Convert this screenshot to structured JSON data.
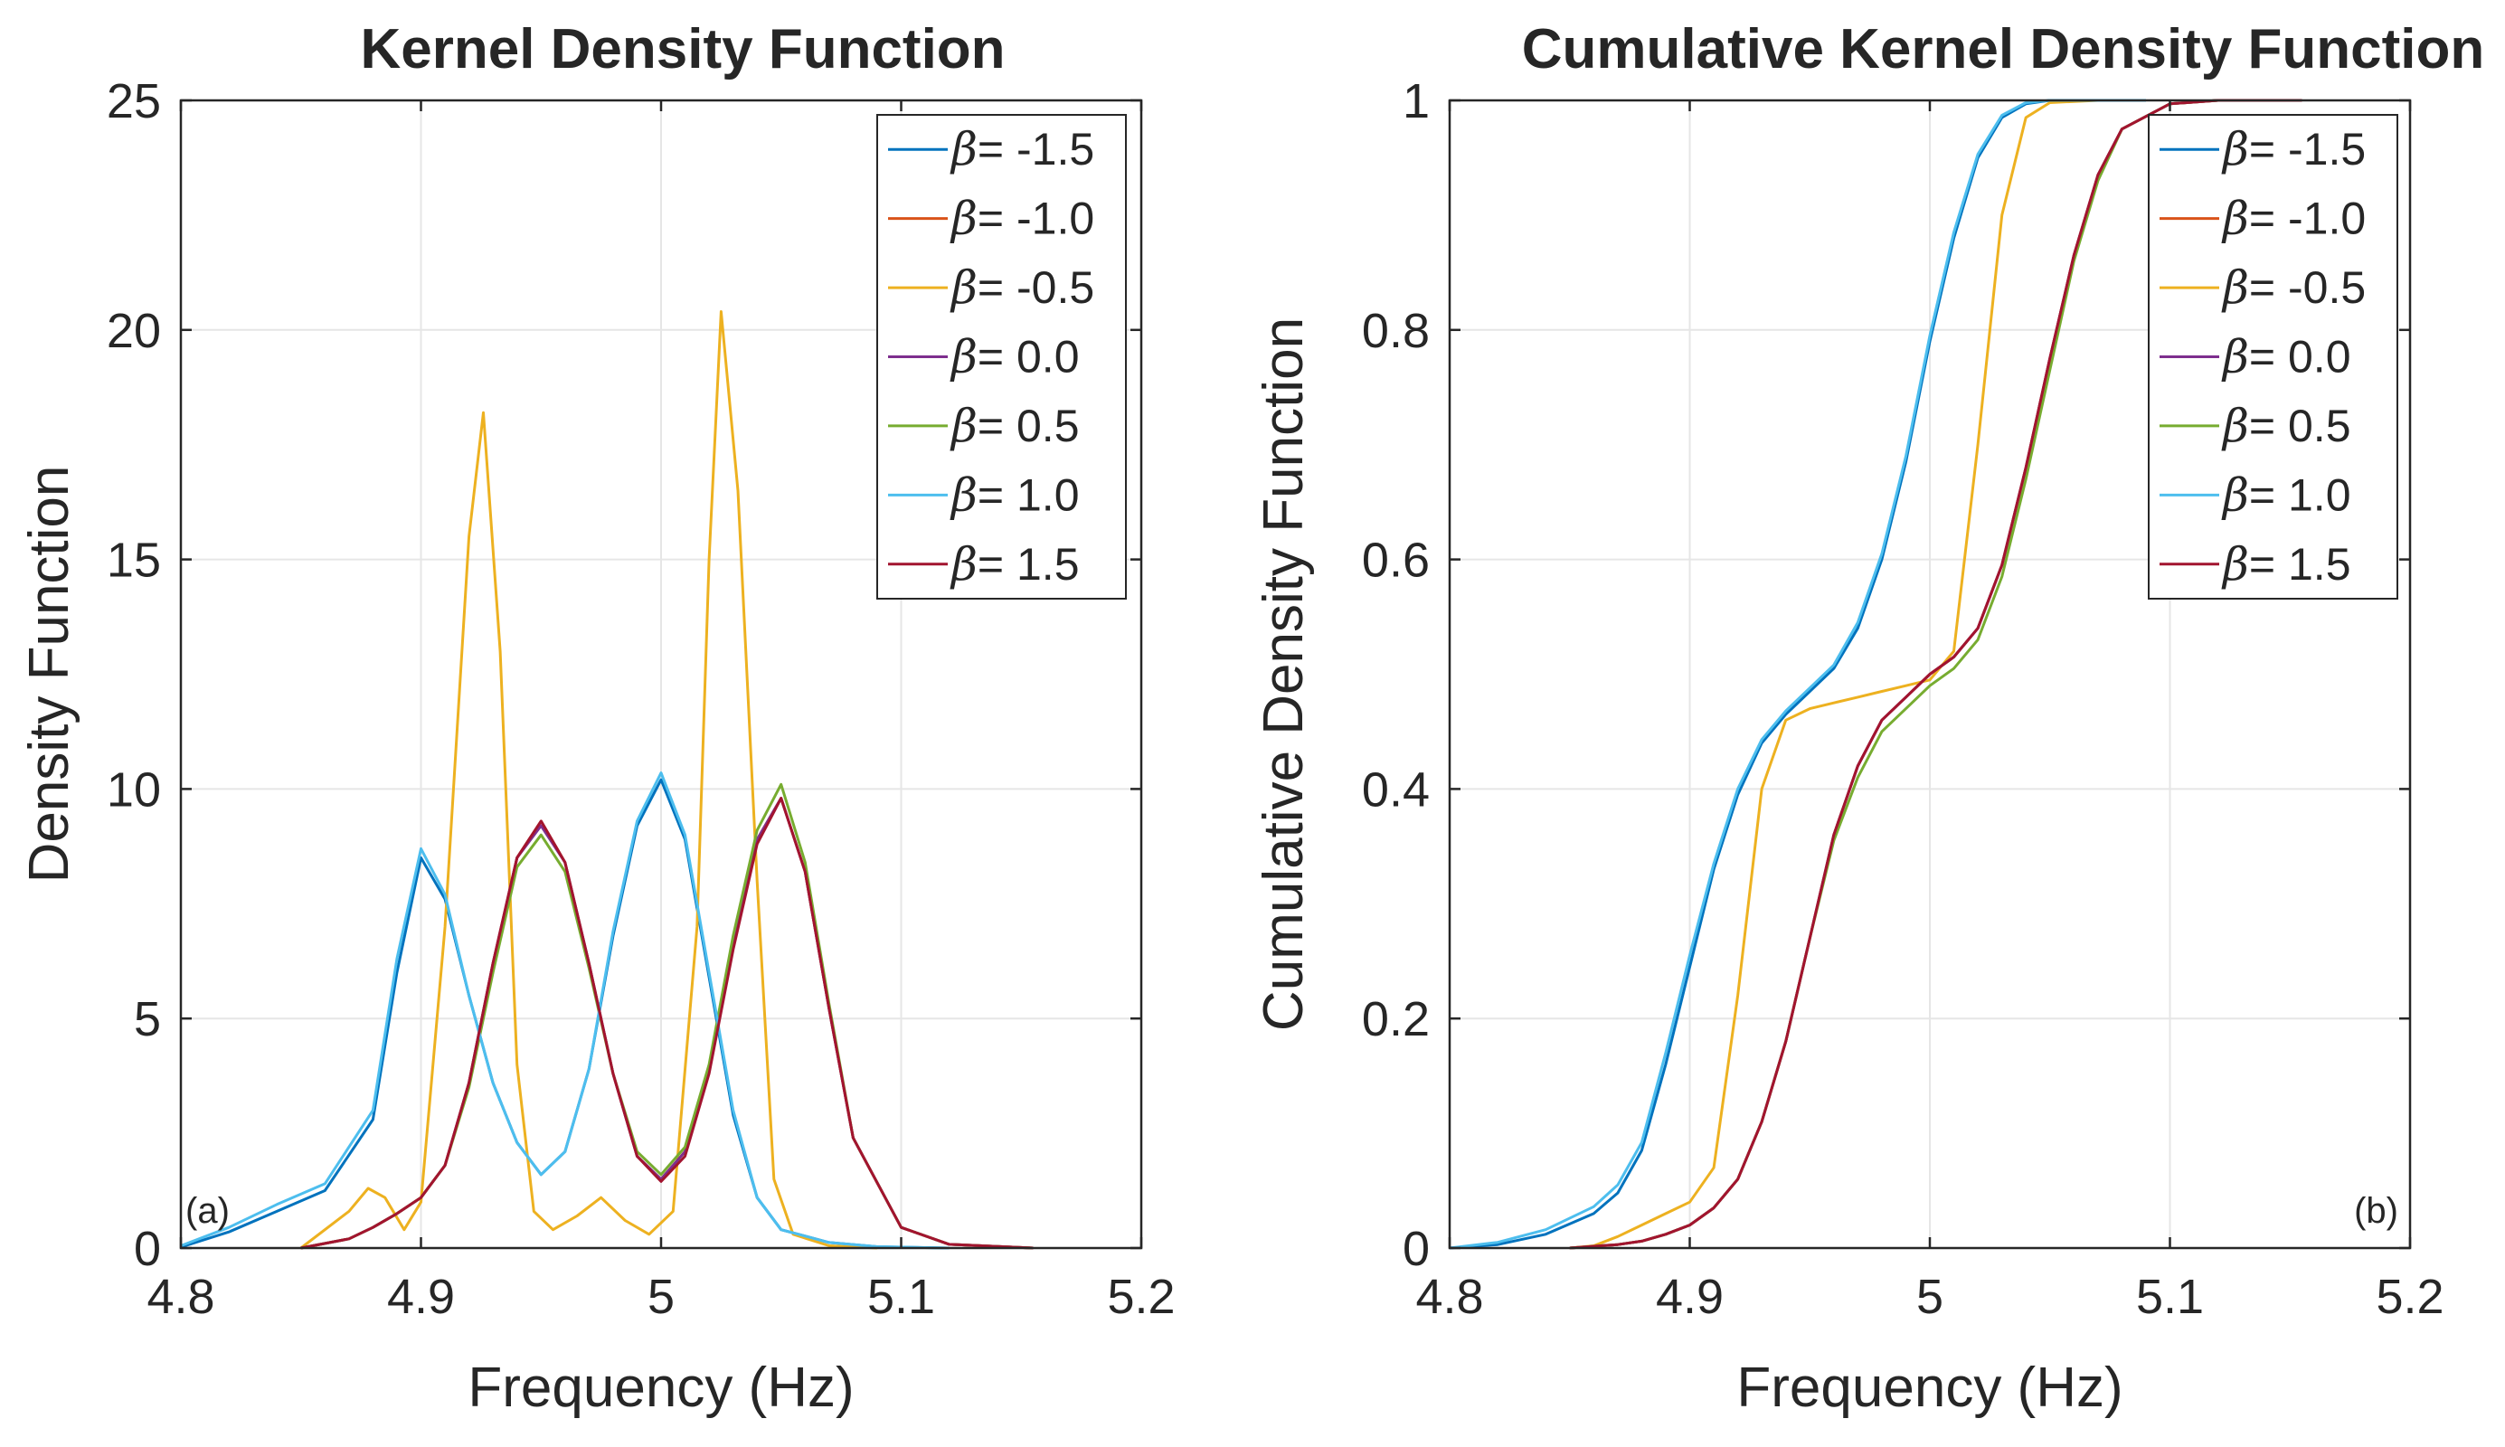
{
  "chart_data": [
    {
      "type": "line",
      "panel_label": "(a)",
      "title": "Kernel Density Function",
      "xlabel": "Frequency (Hz)",
      "ylabel": "Density Function",
      "xlim": [
        4.8,
        5.2
      ],
      "ylim": [
        0,
        25
      ],
      "xticks": [
        4.8,
        4.9,
        5.0,
        5.1,
        5.2
      ],
      "xtick_labels": [
        "4.8",
        "4.9",
        "5",
        "5.1",
        "5.2"
      ],
      "yticks": [
        0,
        5,
        10,
        15,
        20,
        25
      ],
      "ytick_labels": [
        "0",
        "5",
        "10",
        "15",
        "20",
        "25"
      ],
      "grid": true,
      "legend_position": "top-right",
      "legend_prefix": "β",
      "series": [
        {
          "name": "β= -1.5",
          "label": "= -1.5",
          "color": "#0072BD",
          "x": [
            4.8,
            4.82,
            4.84,
            4.86,
            4.88,
            4.89,
            4.9,
            4.91,
            4.92,
            4.93,
            4.94,
            4.95,
            4.96,
            4.97,
            4.98,
            4.99,
            5.0,
            5.01,
            5.02,
            5.03,
            5.04,
            5.05,
            5.07,
            5.09,
            5.12
          ],
          "y": [
            0.02,
            0.35,
            0.8,
            1.25,
            2.8,
            6.0,
            8.5,
            7.6,
            5.5,
            3.6,
            2.3,
            1.6,
            2.1,
            3.9,
            6.8,
            9.2,
            10.2,
            8.9,
            5.9,
            2.9,
            1.1,
            0.4,
            0.12,
            0.03,
            0
          ]
        },
        {
          "name": "β= -1.0",
          "label": "= -1.0",
          "color": "#D95319",
          "x": [
            4.85,
            4.87,
            4.88,
            4.89,
            4.9,
            4.91,
            4.92,
            4.93,
            4.94,
            4.95,
            4.96,
            4.97,
            4.98,
            4.99,
            5.0,
            5.01,
            5.02,
            5.03,
            5.04,
            5.05,
            5.06,
            5.07,
            5.08,
            5.1,
            5.12,
            5.155
          ],
          "y": [
            0,
            0.2,
            0.45,
            0.75,
            1.1,
            1.8,
            3.6,
            6.2,
            8.5,
            9.3,
            8.4,
            6.2,
            3.8,
            2.0,
            1.5,
            2.1,
            3.9,
            6.6,
            8.9,
            9.8,
            8.2,
            5.2,
            2.4,
            0.45,
            0.08,
            0
          ]
        },
        {
          "name": "β= -0.5",
          "label": "= -0.5",
          "color": "#EDB120",
          "x": [
            4.85,
            4.87,
            4.878,
            4.885,
            4.893,
            4.9,
            4.91,
            4.92,
            4.926,
            4.933,
            4.94,
            4.947,
            4.955,
            4.965,
            4.975,
            4.985,
            4.995,
            5.005,
            5.015,
            5.02,
            5.025,
            5.032,
            5.04,
            5.047,
            5.055,
            5.07,
            5.09
          ],
          "y": [
            0,
            0.8,
            1.3,
            1.1,
            0.4,
            1.0,
            7.0,
            15.5,
            18.2,
            13.0,
            4.0,
            0.8,
            0.4,
            0.7,
            1.1,
            0.6,
            0.3,
            0.8,
            7.0,
            15.0,
            20.4,
            16.5,
            8.0,
            1.5,
            0.3,
            0.05,
            0
          ]
        },
        {
          "name": "β= 0.0",
          "label": "= 0.0",
          "color": "#7E2F8E",
          "x": [
            4.85,
            4.87,
            4.88,
            4.89,
            4.9,
            4.91,
            4.92,
            4.93,
            4.94,
            4.95,
            4.96,
            4.97,
            4.98,
            4.99,
            5.0,
            5.01,
            5.02,
            5.03,
            5.04,
            5.05,
            5.06,
            5.07,
            5.08,
            5.1,
            5.12,
            5.155
          ],
          "y": [
            0,
            0.2,
            0.45,
            0.75,
            1.1,
            1.8,
            3.6,
            6.2,
            8.5,
            9.2,
            8.4,
            6.2,
            3.8,
            2.0,
            1.5,
            2.1,
            3.9,
            6.6,
            8.9,
            9.8,
            8.2,
            5.2,
            2.4,
            0.45,
            0.08,
            0
          ]
        },
        {
          "name": "β= 0.5",
          "label": "= 0.5",
          "color": "#77AC30",
          "x": [
            4.85,
            4.87,
            4.88,
            4.89,
            4.9,
            4.91,
            4.92,
            4.93,
            4.94,
            4.95,
            4.96,
            4.97,
            4.98,
            4.99,
            5.0,
            5.01,
            5.02,
            5.03,
            5.04,
            5.05,
            5.06,
            5.07,
            5.08,
            5.1,
            5.12,
            5.155
          ],
          "y": [
            0,
            0.2,
            0.45,
            0.75,
            1.1,
            1.8,
            3.5,
            6.0,
            8.3,
            9.0,
            8.2,
            6.1,
            3.8,
            2.1,
            1.6,
            2.2,
            4.0,
            6.8,
            9.1,
            10.1,
            8.4,
            5.3,
            2.4,
            0.45,
            0.08,
            0
          ]
        },
        {
          "name": "β= 1.0",
          "label": "= 1.0",
          "color": "#4DBEEE",
          "x": [
            4.8,
            4.82,
            4.84,
            4.86,
            4.88,
            4.89,
            4.9,
            4.91,
            4.92,
            4.93,
            4.94,
            4.95,
            4.96,
            4.97,
            4.98,
            4.99,
            5.0,
            5.01,
            5.02,
            5.03,
            5.04,
            5.05,
            5.07,
            5.09,
            5.12
          ],
          "y": [
            0.05,
            0.45,
            0.95,
            1.4,
            3.0,
            6.3,
            8.7,
            7.7,
            5.5,
            3.6,
            2.3,
            1.6,
            2.1,
            3.9,
            6.9,
            9.3,
            10.35,
            9.0,
            6.0,
            3.0,
            1.1,
            0.4,
            0.12,
            0.03,
            0
          ]
        },
        {
          "name": "β= 1.5",
          "label": "= 1.5",
          "color": "#A2142F",
          "x": [
            4.85,
            4.87,
            4.88,
            4.89,
            4.9,
            4.91,
            4.92,
            4.93,
            4.94,
            4.95,
            4.96,
            4.97,
            4.98,
            4.99,
            5.0,
            5.01,
            5.02,
            5.03,
            5.04,
            5.05,
            5.06,
            5.07,
            5.08,
            5.1,
            5.12,
            5.155
          ],
          "y": [
            0,
            0.2,
            0.45,
            0.75,
            1.1,
            1.8,
            3.6,
            6.2,
            8.5,
            9.3,
            8.4,
            6.2,
            3.8,
            2.0,
            1.45,
            2.0,
            3.8,
            6.5,
            8.8,
            9.8,
            8.2,
            5.2,
            2.4,
            0.45,
            0.08,
            0
          ]
        }
      ]
    },
    {
      "type": "line",
      "panel_label": "(b)",
      "title": "Cumulative Kernel Density Function",
      "xlabel": "Frequency (Hz)",
      "ylabel": "Cumulative Density Function",
      "xlim": [
        4.8,
        5.2
      ],
      "ylim": [
        0,
        1
      ],
      "xticks": [
        4.8,
        4.9,
        5.0,
        5.1,
        5.2
      ],
      "xtick_labels": [
        "4.8",
        "4.9",
        "5",
        "5.1",
        "5.2"
      ],
      "yticks": [
        0,
        0.2,
        0.4,
        0.6,
        0.8,
        1.0
      ],
      "ytick_labels": [
        "0",
        "0.2",
        "0.4",
        "0.6",
        "0.8",
        "1"
      ],
      "grid": true,
      "legend_position": "top-right",
      "legend_prefix": "β",
      "series": [
        {
          "name": "β= -1.5",
          "label": "= -1.5",
          "color": "#0072BD",
          "x": [
            4.8,
            4.82,
            4.84,
            4.86,
            4.87,
            4.88,
            4.89,
            4.9,
            4.91,
            4.92,
            4.93,
            4.94,
            4.95,
            4.96,
            4.97,
            4.98,
            4.99,
            5.0,
            5.01,
            5.02,
            5.03,
            5.04,
            5.05,
            5.07,
            5.09
          ],
          "y": [
            0,
            0.003,
            0.012,
            0.03,
            0.048,
            0.085,
            0.16,
            0.245,
            0.33,
            0.395,
            0.44,
            0.465,
            0.485,
            0.505,
            0.54,
            0.6,
            0.685,
            0.79,
            0.88,
            0.95,
            0.985,
            0.997,
            1.0,
            1.0,
            1.0
          ]
        },
        {
          "name": "β= -1.0",
          "label": "= -1.0",
          "color": "#D95319",
          "x": [
            4.85,
            4.87,
            4.88,
            4.89,
            4.9,
            4.91,
            4.92,
            4.93,
            4.94,
            4.95,
            4.96,
            4.97,
            4.98,
            4.99,
            5.0,
            5.01,
            5.02,
            5.03,
            5.04,
            5.05,
            5.06,
            5.07,
            5.08,
            5.1,
            5.12,
            5.155
          ],
          "y": [
            0,
            0.003,
            0.006,
            0.012,
            0.02,
            0.035,
            0.06,
            0.11,
            0.18,
            0.27,
            0.36,
            0.42,
            0.46,
            0.48,
            0.5,
            0.515,
            0.54,
            0.595,
            0.68,
            0.775,
            0.865,
            0.935,
            0.975,
            0.997,
            1.0,
            1.0
          ]
        },
        {
          "name": "β= -0.5",
          "label": "= -0.5",
          "color": "#EDB120",
          "x": [
            4.85,
            4.86,
            4.87,
            4.88,
            4.89,
            4.9,
            4.91,
            4.92,
            4.93,
            4.94,
            4.95,
            4.96,
            4.97,
            4.98,
            4.99,
            5.0,
            5.01,
            5.02,
            5.03,
            5.04,
            5.05,
            5.07
          ],
          "y": [
            0,
            0.002,
            0.01,
            0.02,
            0.03,
            0.04,
            0.07,
            0.22,
            0.4,
            0.46,
            0.47,
            0.475,
            0.48,
            0.485,
            0.49,
            0.495,
            0.52,
            0.7,
            0.9,
            0.985,
            0.998,
            1.0
          ]
        },
        {
          "name": "β= 0.0",
          "label": "= 0.0",
          "color": "#7E2F8E",
          "x": [
            4.85,
            4.87,
            4.88,
            4.89,
            4.9,
            4.91,
            4.92,
            4.93,
            4.94,
            4.95,
            4.96,
            4.97,
            4.98,
            4.99,
            5.0,
            5.01,
            5.02,
            5.03,
            5.04,
            5.05,
            5.06,
            5.07,
            5.08,
            5.1,
            5.12,
            5.155
          ],
          "y": [
            0,
            0.003,
            0.006,
            0.012,
            0.02,
            0.035,
            0.06,
            0.11,
            0.18,
            0.27,
            0.36,
            0.42,
            0.46,
            0.48,
            0.5,
            0.515,
            0.54,
            0.595,
            0.68,
            0.775,
            0.865,
            0.935,
            0.975,
            0.997,
            1.0,
            1.0
          ]
        },
        {
          "name": "β= 0.5",
          "label": "= 0.5",
          "color": "#77AC30",
          "x": [
            4.85,
            4.87,
            4.88,
            4.89,
            4.9,
            4.91,
            4.92,
            4.93,
            4.94,
            4.95,
            4.96,
            4.97,
            4.98,
            4.99,
            5.0,
            5.01,
            5.02,
            5.03,
            5.04,
            5.05,
            5.06,
            5.07,
            5.08,
            5.1,
            5.12,
            5.155
          ],
          "y": [
            0,
            0.003,
            0.006,
            0.012,
            0.02,
            0.035,
            0.06,
            0.11,
            0.18,
            0.27,
            0.355,
            0.41,
            0.45,
            0.47,
            0.49,
            0.505,
            0.53,
            0.585,
            0.67,
            0.765,
            0.86,
            0.93,
            0.975,
            0.997,
            1.0,
            1.0
          ]
        },
        {
          "name": "β= 1.0",
          "label": "= 1.0",
          "color": "#4DBEEE",
          "x": [
            4.8,
            4.82,
            4.84,
            4.86,
            4.87,
            4.88,
            4.89,
            4.9,
            4.91,
            4.92,
            4.93,
            4.94,
            4.95,
            4.96,
            4.97,
            4.98,
            4.99,
            5.0,
            5.01,
            5.02,
            5.03,
            5.04,
            5.05,
            5.07,
            5.09
          ],
          "y": [
            0,
            0.005,
            0.016,
            0.036,
            0.055,
            0.092,
            0.17,
            0.255,
            0.335,
            0.4,
            0.443,
            0.468,
            0.488,
            0.508,
            0.545,
            0.605,
            0.69,
            0.795,
            0.885,
            0.953,
            0.987,
            0.998,
            1.0,
            1.0,
            1.0
          ]
        },
        {
          "name": "β= 1.5",
          "label": "= 1.5",
          "color": "#A2142F",
          "x": [
            4.85,
            4.87,
            4.88,
            4.89,
            4.9,
            4.91,
            4.92,
            4.93,
            4.94,
            4.95,
            4.96,
            4.97,
            4.98,
            4.99,
            5.0,
            5.01,
            5.02,
            5.03,
            5.04,
            5.05,
            5.06,
            5.07,
            5.08,
            5.1,
            5.12,
            5.155
          ],
          "y": [
            0,
            0.003,
            0.006,
            0.012,
            0.02,
            0.035,
            0.06,
            0.11,
            0.18,
            0.27,
            0.36,
            0.42,
            0.46,
            0.48,
            0.5,
            0.515,
            0.54,
            0.595,
            0.68,
            0.775,
            0.865,
            0.935,
            0.975,
            0.997,
            1.0,
            1.0
          ]
        }
      ]
    }
  ]
}
